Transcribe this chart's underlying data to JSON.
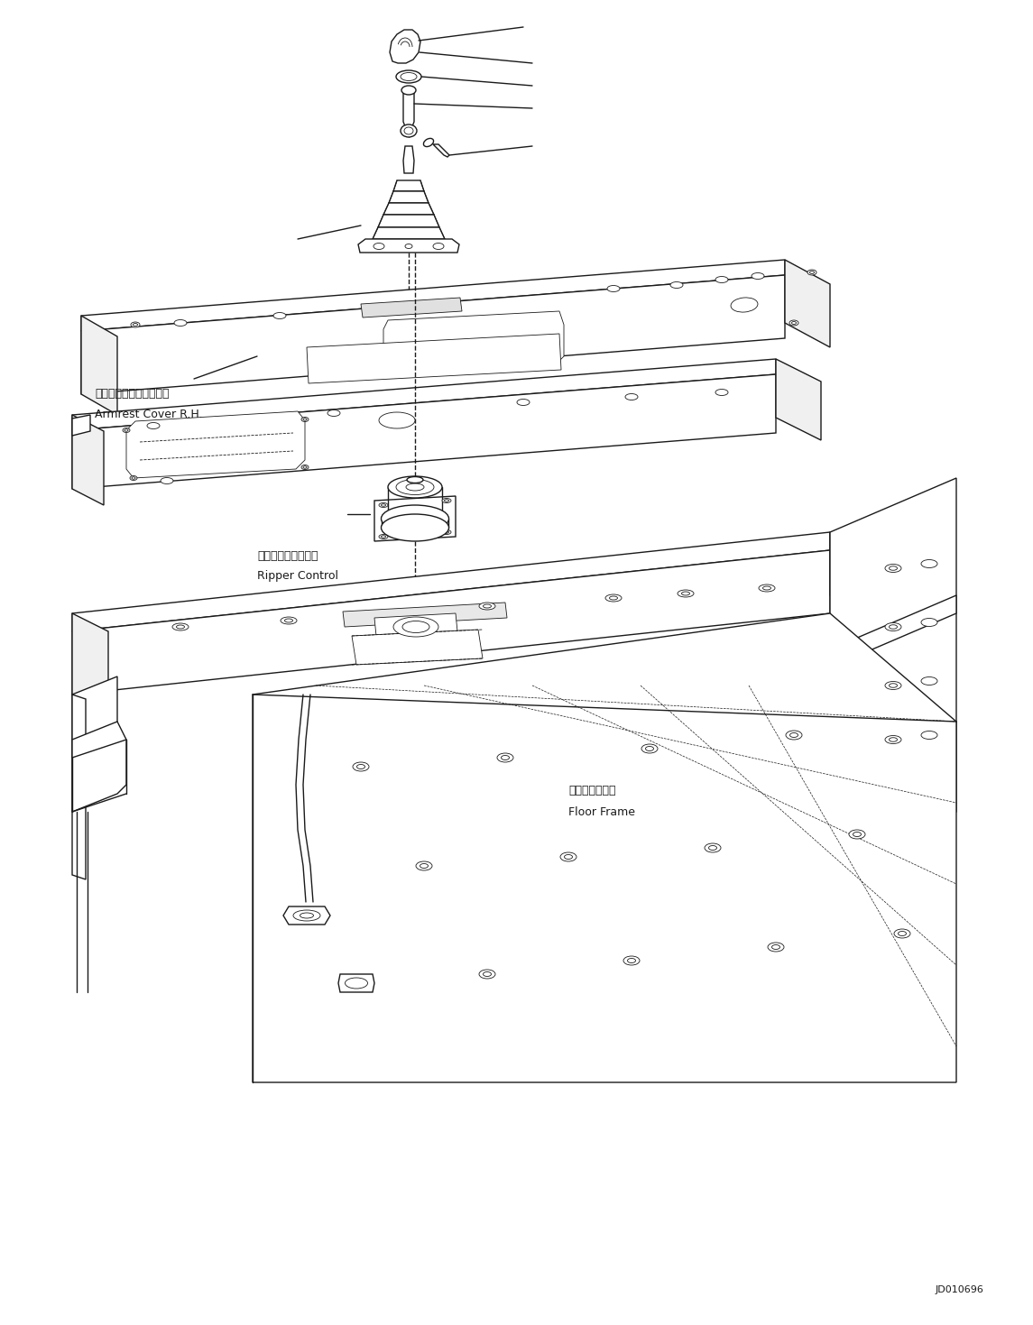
{
  "background_color": "#ffffff",
  "line_color": "#1a1a1a",
  "figure_width": 11.45,
  "figure_height": 14.69,
  "dpi": 100,
  "labels": {
    "armrest_jp": "アームレストカバー　右",
    "armrest_en": "Armrest Cover R.H.",
    "ripper_jp": "リッパコントロール",
    "ripper_en": "Ripper Control",
    "floor_jp": "フロアフレーム",
    "floor_en": "Floor Frame",
    "diagram_id": "JD010696"
  }
}
